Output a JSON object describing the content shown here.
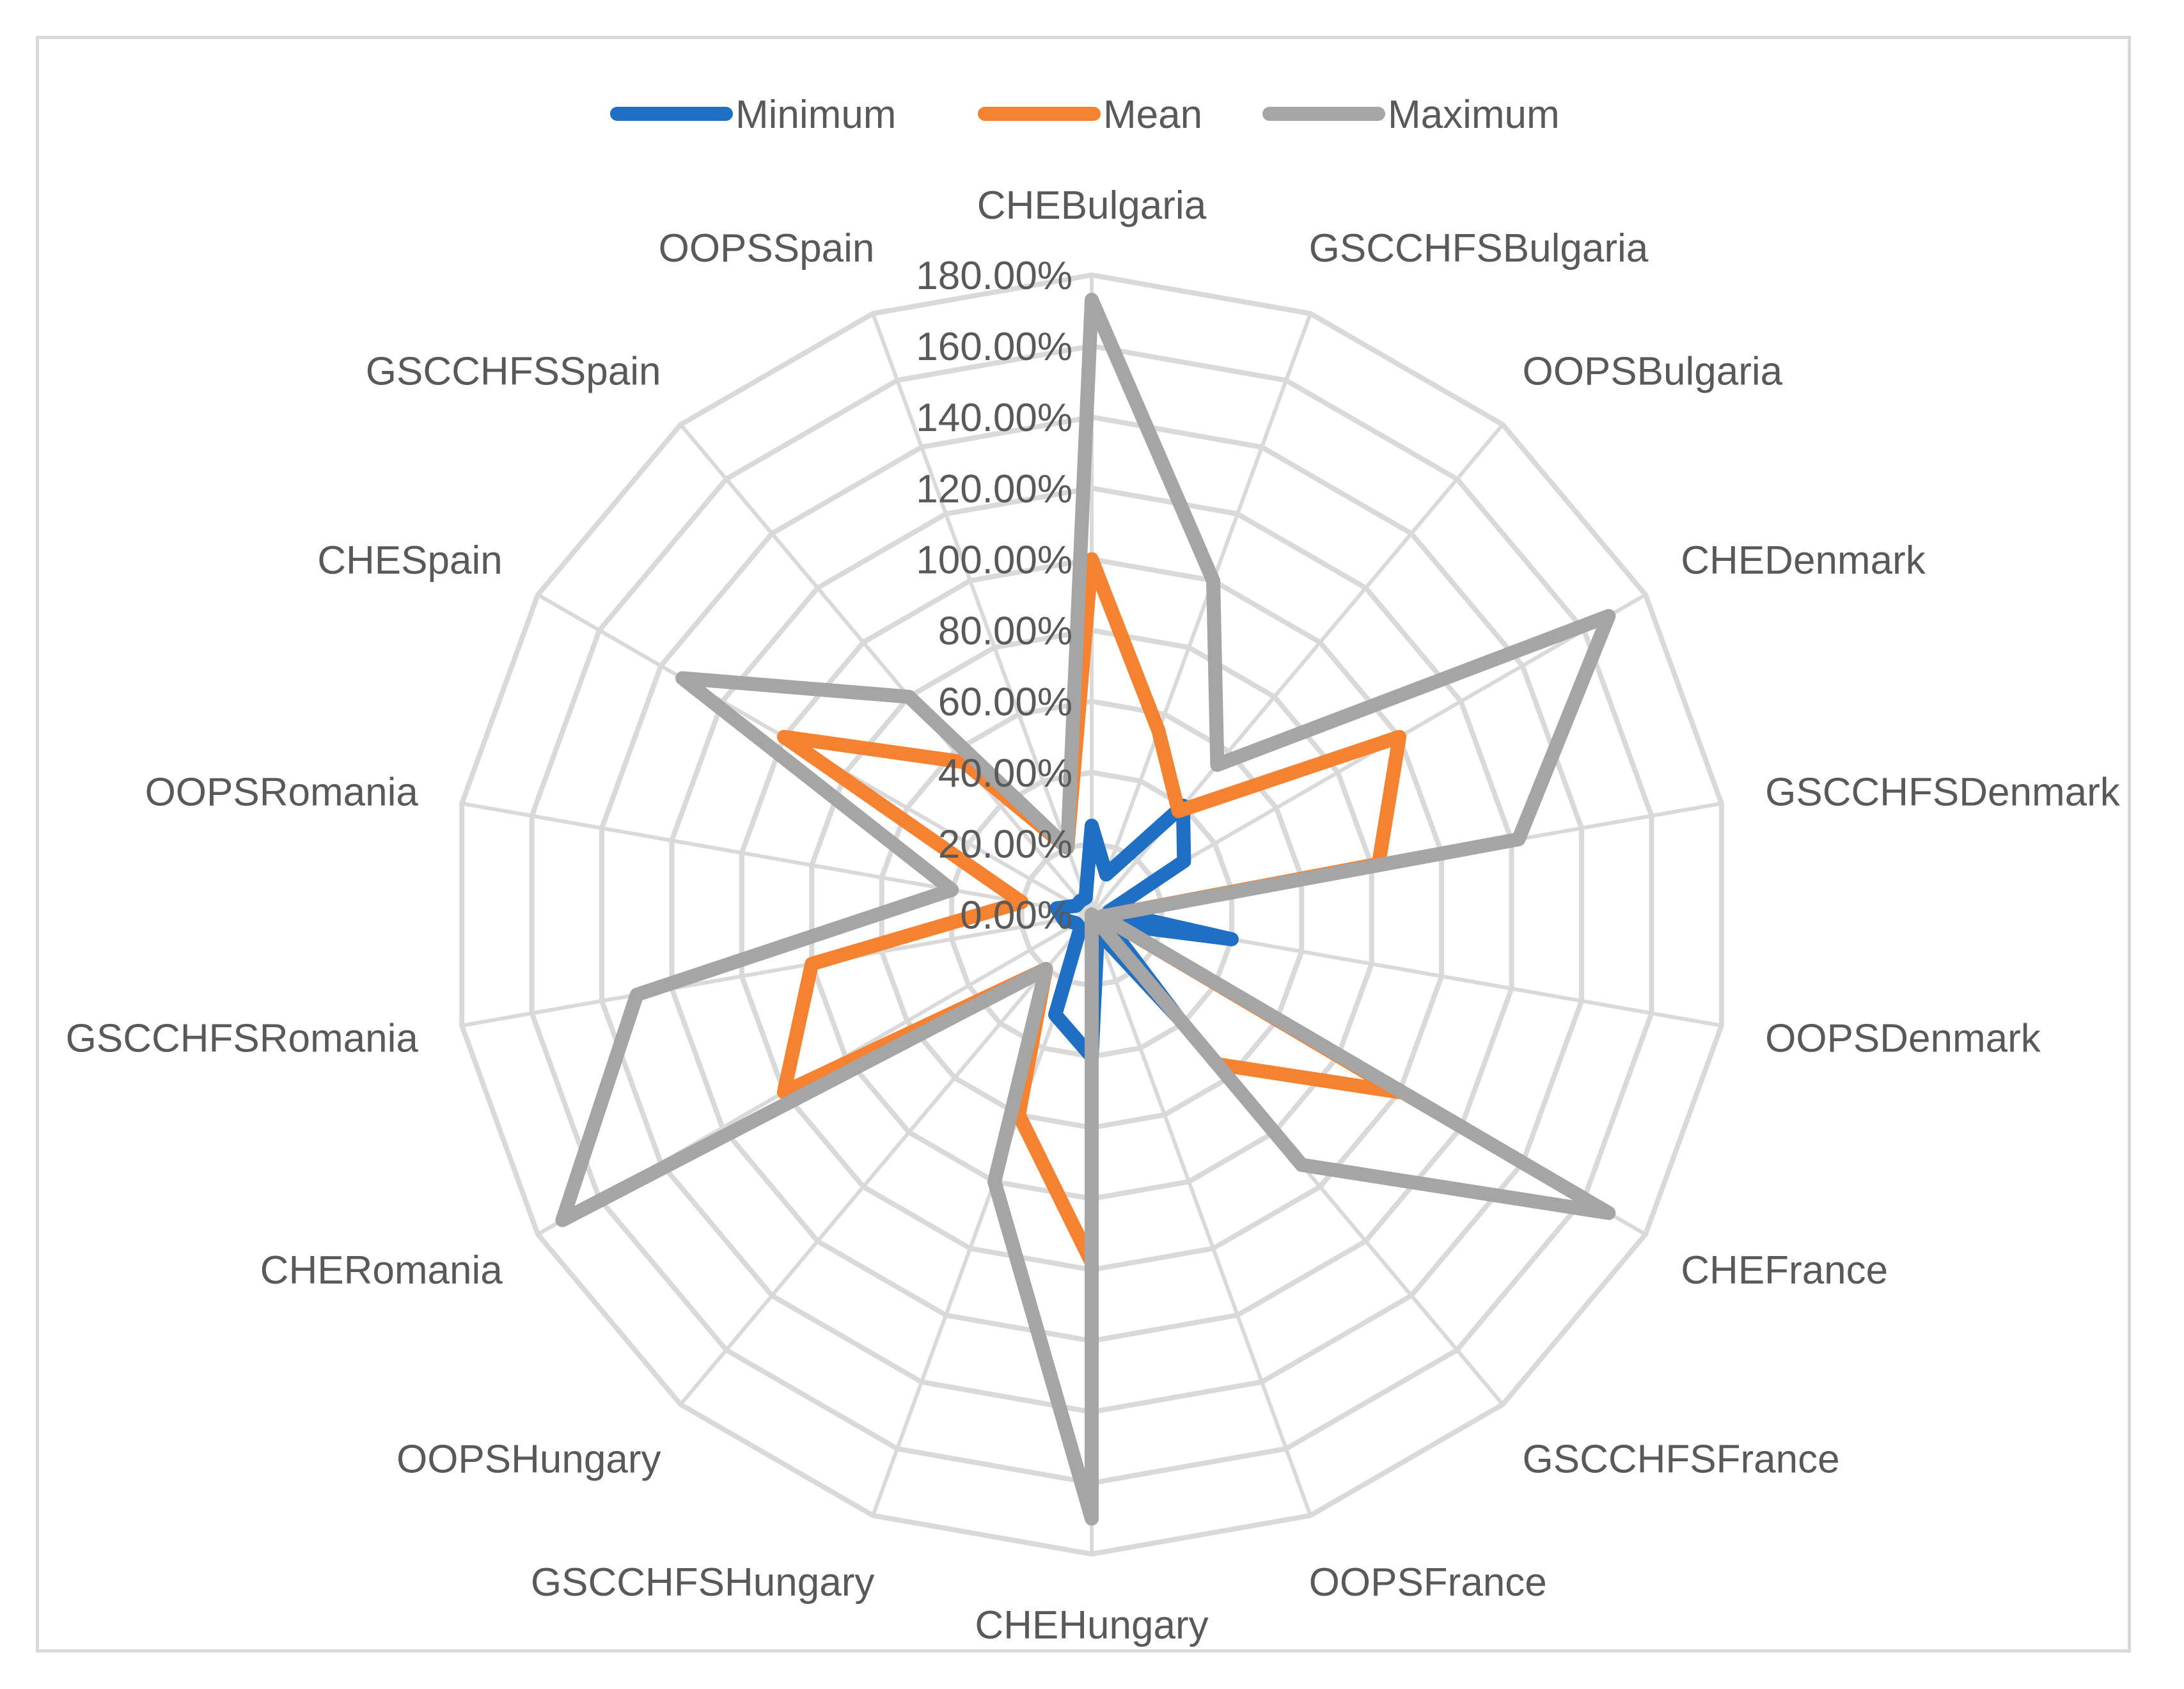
{
  "chart_data": {
    "type": "radar",
    "title": "",
    "categories": [
      "CHEBulgaria",
      "GSCCHFSBulgaria",
      "OOPSBulgaria",
      "CHEDenmark",
      "GSCCHFSDenmark",
      "OOPSDenmark",
      "CHEFrance",
      "GSCCHFSFrance",
      "OOPSFrance",
      "CHEHungary",
      "GSCCHFSHungary",
      "OOPSHungary",
      "CHERomania",
      "GSCCHFSRomania",
      "OOPSRomania",
      "CHESpain",
      "GSCCHFSSpain",
      "OOPSSpain"
    ],
    "series": [
      {
        "name": "Minimum",
        "color": "#1f6fc5",
        "values": [
          25,
          12,
          40,
          30,
          5,
          40,
          5,
          38,
          5,
          40,
          30,
          5,
          5,
          8,
          10,
          5,
          5,
          5
        ]
      },
      {
        "name": "Mean",
        "color": "#f58231",
        "values": [
          100,
          55,
          38,
          100,
          82,
          3,
          100,
          55,
          0,
          98,
          60,
          20,
          100,
          80,
          20,
          100,
          56,
          20
        ]
      },
      {
        "name": "Maximum",
        "color": "#a5a5a5",
        "values": [
          173,
          100,
          55,
          168,
          122,
          3,
          168,
          92,
          0,
          170,
          80,
          20,
          172,
          130,
          40,
          133,
          80,
          20
        ]
      }
    ],
    "tick_labels": [
      "0.00%",
      "20.00%",
      "40.00%",
      "60.00%",
      "80.00%",
      "100.00%",
      "120.00%",
      "140.00%",
      "160.00%",
      "180.00%"
    ],
    "rmax": 180,
    "grid": true,
    "legend_position": "top"
  }
}
